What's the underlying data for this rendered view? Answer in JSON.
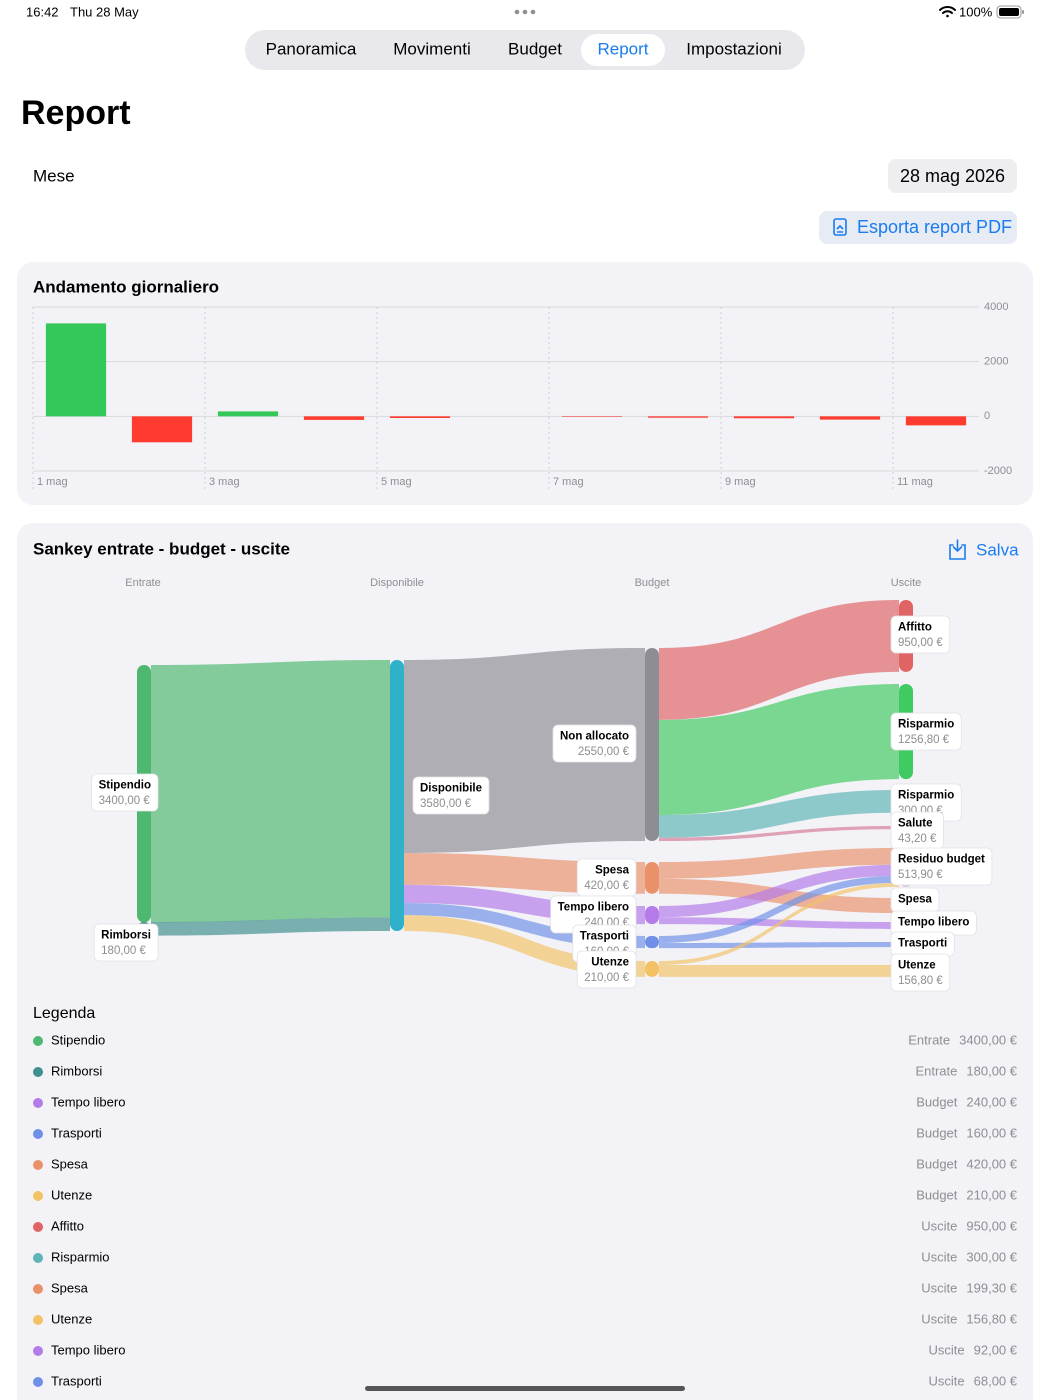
{
  "status_bar": {
    "time": "16:42",
    "date": "Thu 28 May",
    "battery": "100%"
  },
  "tabs": [
    {
      "label": "Panoramica"
    },
    {
      "label": "Movimenti"
    },
    {
      "label": "Budget"
    },
    {
      "label": "Report",
      "selected": true
    },
    {
      "label": "Impostazioni"
    }
  ],
  "page_title": "Report",
  "month": {
    "label": "Mese",
    "value": "28 mag 2026"
  },
  "export_button": "Esporta report PDF",
  "chart_data": [
    {
      "type": "bar",
      "title": "Andamento giornaliero",
      "categories": [
        "1 mag",
        null,
        "3 mag",
        null,
        "5 mag",
        null,
        "7 mag",
        null,
        "9 mag",
        null,
        "11 mag"
      ],
      "values": [
        3400,
        -950,
        180,
        -130,
        -60,
        0,
        -20,
        -50,
        -70,
        -120,
        -330
      ],
      "ylim": [
        -2000,
        4000
      ],
      "yticks": [
        4000,
        2000,
        0,
        -2000
      ],
      "grid": true,
      "positive_color": "#34c759",
      "negative_color": "#ff3b30"
    },
    {
      "type": "sankey",
      "title": "Sankey entrate - budget - uscite",
      "save_label": "Salva",
      "columns": [
        "Entrate",
        "Disponibile",
        "Budget",
        "Uscite"
      ],
      "nodes": [
        {
          "label": "Stipendio",
          "value": 3400,
          "value_label": "3400,00 €",
          "color": "#4fb870"
        },
        {
          "label": "Rimborsi",
          "value": 180,
          "value_label": "180,00 €",
          "color": "#3f8f8c"
        },
        {
          "label": "Disponibile",
          "value": 3580,
          "value_label": "3580,00 €",
          "color": "#2fb1c9"
        },
        {
          "label": "Non allocato",
          "value": 2550,
          "value_label": "2550,00 €",
          "color": "#8e8d93"
        },
        {
          "label": "Spesa",
          "value": 420,
          "value_label": "420,00 €",
          "color": "#e9926a"
        },
        {
          "label": "Tempo libero",
          "value": 240,
          "value_label": "240,00 €",
          "color": "#b47be9"
        },
        {
          "label": "Trasporti",
          "value": 160,
          "value_label": "160,00 €",
          "color": "#7090e8"
        },
        {
          "label": "Utenze",
          "value": 210,
          "value_label": "210,00 €",
          "color": "#f2c265"
        },
        {
          "label": "Affitto",
          "value": 950,
          "value_label": "950,00 €",
          "color": "#e06464"
        },
        {
          "label": "Risparmio",
          "value": 1256.8,
          "value_label": "1256,80 €",
          "color": "#3fca62"
        },
        {
          "label": "Risparmio",
          "value": 300,
          "value_label": "300,00 €",
          "color": "#5db5b5"
        },
        {
          "label": "Salute",
          "value": 43.2,
          "value_label": "43,20 €",
          "color": "#d67a95"
        },
        {
          "label": "Residuo budget",
          "value": 513.9,
          "value_label": "513,90 €",
          "color": "#c9c9ce"
        },
        {
          "label": "Spesa",
          "value": 199.3,
          "color": "#e9926a"
        },
        {
          "label": "Tempo libero",
          "value": 92,
          "color": "#b47be9"
        },
        {
          "label": "Trasporti",
          "value": 68,
          "color": "#7090e8"
        },
        {
          "label": "Utenze",
          "value": 156.8,
          "value_label": "156,80 €",
          "color": "#f2c265"
        }
      ],
      "legend": {
        "title": "Legenda",
        "items": [
          {
            "name": "Stipendio",
            "group": "Entrate",
            "amount": "3400,00 €",
            "color": "#4fb870"
          },
          {
            "name": "Rimborsi",
            "group": "Entrate",
            "amount": "180,00 €",
            "color": "#3f8f8c"
          },
          {
            "name": "Tempo libero",
            "group": "Budget",
            "amount": "240,00 €",
            "color": "#b47be9"
          },
          {
            "name": "Trasporti",
            "group": "Budget",
            "amount": "160,00 €",
            "color": "#7090e8"
          },
          {
            "name": "Spesa",
            "group": "Budget",
            "amount": "420,00 €",
            "color": "#e9926a"
          },
          {
            "name": "Utenze",
            "group": "Budget",
            "amount": "210,00 €",
            "color": "#f2c265"
          },
          {
            "name": "Affitto",
            "group": "Uscite",
            "amount": "950,00 €",
            "color": "#e06464"
          },
          {
            "name": "Risparmio",
            "group": "Uscite",
            "amount": "300,00 €",
            "color": "#5db5b5"
          },
          {
            "name": "Spesa",
            "group": "Uscite",
            "amount": "199,30 €",
            "color": "#e9926a"
          },
          {
            "name": "Utenze",
            "group": "Uscite",
            "amount": "156,80 €",
            "color": "#f2c265"
          },
          {
            "name": "Tempo libero",
            "group": "Uscite",
            "amount": "92,00 €",
            "color": "#b47be9"
          },
          {
            "name": "Trasporti",
            "group": "Uscite",
            "amount": "68,00 €",
            "color": "#7090e8"
          }
        ]
      }
    }
  ]
}
